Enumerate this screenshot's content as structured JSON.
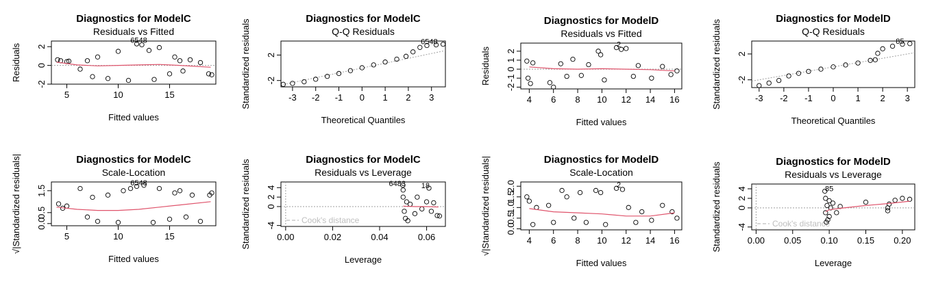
{
  "page_title": "",
  "colors": {
    "points": "#000000",
    "smooth_line": "#DF536B",
    "reference_line": "#9E9E9E",
    "cooks_legend": "#BEBEBE"
  },
  "chart_data": [
    {
      "type": "scatter",
      "title": "Diagnostics for ModelC",
      "subtitle": "Residuals vs Fitted",
      "xlabel": "Fitted values",
      "ylabel": "Residuals",
      "xlim": [
        3.5,
        19.5
      ],
      "ylim": [
        -2,
        2.6
      ],
      "x_ticks": [
        "5",
        "10",
        "15"
      ],
      "x_tick_values": [
        5,
        10,
        15
      ],
      "y_ticks": [
        "-2",
        "0",
        "2"
      ],
      "y_tick_values": [
        -2,
        0,
        2
      ],
      "reference": {
        "kind": "h",
        "value": 0
      },
      "smooth": [
        [
          4,
          0.35
        ],
        [
          6,
          0.05
        ],
        [
          8,
          -0.05
        ],
        [
          10,
          0.0
        ],
        [
          12,
          0.05
        ],
        [
          14,
          0.1
        ],
        [
          16,
          0.0
        ],
        [
          19,
          -0.2
        ]
      ],
      "point_labels": [
        {
          "text": "6548",
          "x": 12.0,
          "y": 2.4
        }
      ],
      "points": [
        [
          4.1,
          0.6
        ],
        [
          4.4,
          0.5
        ],
        [
          5.0,
          0.4
        ],
        [
          5.2,
          0.45
        ],
        [
          6.3,
          -0.4
        ],
        [
          7.0,
          0.5
        ],
        [
          7.5,
          -1.2
        ],
        [
          8.0,
          0.9
        ],
        [
          9.0,
          -1.4
        ],
        [
          10.0,
          1.5
        ],
        [
          11.0,
          -1.6
        ],
        [
          11.8,
          2.3
        ],
        [
          12.3,
          2.2
        ],
        [
          13.0,
          1.6
        ],
        [
          13.5,
          -1.5
        ],
        [
          14.0,
          1.9
        ],
        [
          15.0,
          -0.9
        ],
        [
          15.5,
          0.9
        ],
        [
          16.0,
          0.5
        ],
        [
          16.3,
          -0.6
        ],
        [
          17.0,
          0.6
        ],
        [
          18.0,
          0.3
        ],
        [
          18.8,
          -0.9
        ],
        [
          19.1,
          -1.0
        ]
      ]
    },
    {
      "type": "scatter",
      "title": "Diagnostics for ModelC",
      "subtitle": "Q-Q Residuals",
      "xlabel": "Theoretical Quantiles",
      "ylabel": "Standardized residuals",
      "xlim": [
        -3.5,
        3.6
      ],
      "ylim": [
        -3.0,
        4.2
      ],
      "x_ticks": [
        "-3",
        "-2",
        "-1",
        "0",
        "1",
        "2",
        "3"
      ],
      "x_tick_values": [
        -3,
        -2,
        -1,
        0,
        1,
        2,
        3
      ],
      "y_ticks": [
        "-2",
        "2"
      ],
      "y_tick_values": [
        -2,
        2
      ],
      "reference": {
        "kind": "line",
        "points": [
          [
            -3.5,
            -2.7
          ],
          [
            3.6,
            2.7
          ]
        ]
      },
      "point_labels": [
        {
          "text": "6548",
          "x": 2.9,
          "y": 3.7
        }
      ],
      "points": [
        [
          -3.4,
          -2.6
        ],
        [
          -3.0,
          -2.45
        ],
        [
          -2.5,
          -2.2
        ],
        [
          -2.0,
          -1.8
        ],
        [
          -1.5,
          -1.35
        ],
        [
          -1.0,
          -0.9
        ],
        [
          -0.5,
          -0.45
        ],
        [
          0.0,
          0.0
        ],
        [
          0.5,
          0.45
        ],
        [
          1.0,
          0.9
        ],
        [
          1.5,
          1.35
        ],
        [
          1.9,
          1.8
        ],
        [
          2.2,
          2.5
        ],
        [
          2.5,
          3.2
        ],
        [
          2.8,
          3.5
        ],
        [
          3.2,
          3.6
        ],
        [
          3.5,
          3.7
        ]
      ]
    },
    {
      "type": "scatter",
      "title": "Diagnostics for ModelD",
      "subtitle": "Residuals vs Fitted",
      "xlabel": "Fitted values",
      "ylabel": "Residuals",
      "xlim": [
        3.3,
        16.6
      ],
      "ylim": [
        -2.2,
        2.9
      ],
      "x_ticks": [
        "4",
        "6",
        "8",
        "10",
        "12",
        "14",
        "16"
      ],
      "x_tick_values": [
        4,
        6,
        8,
        10,
        12,
        14,
        16
      ],
      "y_ticks": [
        "-2",
        "-1",
        "0",
        "1",
        "2"
      ],
      "y_tick_values": [
        -2,
        -1,
        0,
        1,
        2
      ],
      "reference": {
        "kind": "h",
        "value": 0
      },
      "smooth": [
        [
          4,
          0.25
        ],
        [
          6,
          0.05
        ],
        [
          8,
          0.0
        ],
        [
          10,
          0.05
        ],
        [
          12,
          0.0
        ],
        [
          14,
          -0.05
        ],
        [
          16,
          -0.2
        ]
      ],
      "point_labels": [
        {
          "text": "2",
          "x": 11.4,
          "y": 2.5
        }
      ],
      "points": [
        [
          3.8,
          0.9
        ],
        [
          3.9,
          -1.0
        ],
        [
          4.1,
          -1.6
        ],
        [
          4.3,
          0.7
        ],
        [
          5.7,
          -1.5
        ],
        [
          6.0,
          -2.0
        ],
        [
          6.6,
          0.6
        ],
        [
          7.1,
          -0.8
        ],
        [
          7.6,
          1.1
        ],
        [
          8.3,
          -0.7
        ],
        [
          8.9,
          0.5
        ],
        [
          9.7,
          2.0
        ],
        [
          9.9,
          1.6
        ],
        [
          10.2,
          -1.2
        ],
        [
          11.2,
          2.4
        ],
        [
          11.6,
          2.2
        ],
        [
          12.0,
          2.3
        ],
        [
          12.6,
          -0.8
        ],
        [
          13.0,
          0.4
        ],
        [
          14.1,
          -1.0
        ],
        [
          15.0,
          0.3
        ],
        [
          15.7,
          -0.6
        ],
        [
          16.2,
          -0.2
        ]
      ]
    },
    {
      "type": "scatter",
      "title": "Diagnostics for ModelD",
      "subtitle": "Q-Q Residuals",
      "xlabel": "Theoretical Quantiles",
      "ylabel": "Standardized residuals",
      "xlim": [
        -3.3,
        3.3
      ],
      "ylim": [
        -3.2,
        4.0
      ],
      "x_ticks": [
        "-3",
        "-2",
        "-1",
        "0",
        "1",
        "2",
        "3"
      ],
      "x_tick_values": [
        -3,
        -2,
        -1,
        0,
        1,
        2,
        3
      ],
      "y_ticks": [
        "-2",
        "2"
      ],
      "y_tick_values": [
        -2,
        2
      ],
      "reference": {
        "kind": "line",
        "points": [
          [
            -3.3,
            -2.2
          ],
          [
            3.3,
            2.2
          ]
        ]
      },
      "point_labels": [
        {
          "text": "85",
          "x": 2.7,
          "y": 3.6
        }
      ],
      "points": [
        [
          -3.0,
          -2.9
        ],
        [
          -2.6,
          -2.5
        ],
        [
          -2.2,
          -2.1
        ],
        [
          -1.8,
          -1.4
        ],
        [
          -1.4,
          -1.0
        ],
        [
          -1.0,
          -0.7
        ],
        [
          -0.5,
          -0.35
        ],
        [
          0.0,
          0.0
        ],
        [
          0.5,
          0.3
        ],
        [
          1.0,
          0.6
        ],
        [
          1.5,
          1.0
        ],
        [
          1.7,
          1.1
        ],
        [
          1.8,
          2.1
        ],
        [
          2.0,
          2.8
        ],
        [
          2.4,
          3.2
        ],
        [
          2.8,
          3.5
        ],
        [
          3.1,
          3.6
        ]
      ]
    },
    {
      "type": "scatter",
      "title": "Diagnostics for ModelC",
      "subtitle": "Scale-Location",
      "xlabel": "Fitted values",
      "ylabel": "√|Standardized residuals|",
      "xlim": [
        3.5,
        19.5
      ],
      "ylim": [
        -0.1,
        1.9
      ],
      "x_ticks": [
        "5",
        "10",
        "15"
      ],
      "x_tick_values": [
        5,
        10,
        15
      ],
      "y_ticks": [
        "0.0",
        "0.5",
        "1.5"
      ],
      "y_tick_values": [
        0.0,
        0.5,
        1.5
      ],
      "smooth": [
        [
          4,
          0.75
        ],
        [
          6,
          0.65
        ],
        [
          8,
          0.6
        ],
        [
          10,
          0.6
        ],
        [
          12,
          0.65
        ],
        [
          14,
          0.75
        ],
        [
          16,
          0.85
        ],
        [
          19,
          1.0
        ]
      ],
      "point_labels": [
        {
          "text": "6548",
          "x": 12.0,
          "y": 1.75
        }
      ],
      "points": [
        [
          4.2,
          0.9
        ],
        [
          4.6,
          0.7
        ],
        [
          5.0,
          0.8
        ],
        [
          6.3,
          1.6
        ],
        [
          7.0,
          0.3
        ],
        [
          7.5,
          1.2
        ],
        [
          8.0,
          0.1
        ],
        [
          9.0,
          1.3
        ],
        [
          10.0,
          0.05
        ],
        [
          10.5,
          1.5
        ],
        [
          11.2,
          1.6
        ],
        [
          11.8,
          1.7
        ],
        [
          12.5,
          1.75
        ],
        [
          13.4,
          0.05
        ],
        [
          14.0,
          1.6
        ],
        [
          15.0,
          0.2
        ],
        [
          15.5,
          1.4
        ],
        [
          16.0,
          1.5
        ],
        [
          16.6,
          0.3
        ],
        [
          17.2,
          1.3
        ],
        [
          18.0,
          0.1
        ],
        [
          18.9,
          1.3
        ],
        [
          19.1,
          1.4
        ]
      ]
    },
    {
      "type": "scatter",
      "title": "Diagnostics for ModelC",
      "subtitle": "Residuals vs Leverage",
      "xlabel": "Leverage",
      "ylabel": "Standardized residuals",
      "xlim": [
        -0.002,
        0.068
      ],
      "ylim": [
        -4.2,
        5.2
      ],
      "x_ticks": [
        "0.00",
        "0.02",
        "0.04",
        "0.06"
      ],
      "x_tick_values": [
        0.0,
        0.02,
        0.04,
        0.06
      ],
      "y_ticks": [
        "-4",
        "0",
        "2",
        "4"
      ],
      "y_tick_values": [
        -4,
        0,
        2,
        4
      ],
      "reference": {
        "kind": "h",
        "value": 0
      },
      "smooth": [
        [
          0.05,
          0.1
        ],
        [
          0.055,
          0.0
        ],
        [
          0.06,
          0.0
        ],
        [
          0.065,
          -0.1
        ]
      ],
      "point_labels": [
        {
          "text": "6483",
          "x": 0.0475,
          "y": 4.3
        },
        {
          "text": "18",
          "x": 0.0595,
          "y": 3.9
        }
      ],
      "legend_text": "Cook's distance",
      "points": [
        [
          0.0499,
          4.5
        ],
        [
          0.05,
          3.5
        ],
        [
          0.05,
          2.0
        ],
        [
          0.0505,
          -1.0
        ],
        [
          0.051,
          -2.5
        ],
        [
          0.0515,
          1.0
        ],
        [
          0.052,
          -3.0
        ],
        [
          0.053,
          0.5
        ],
        [
          0.055,
          -1.5
        ],
        [
          0.056,
          2.0
        ],
        [
          0.058,
          -0.5
        ],
        [
          0.06,
          1.0
        ],
        [
          0.061,
          3.9
        ],
        [
          0.062,
          -1.0
        ],
        [
          0.063,
          0.8
        ],
        [
          0.0645,
          -1.9
        ],
        [
          0.0655,
          -2.0
        ]
      ]
    },
    {
      "type": "scatter",
      "title": "Diagnostics for ModelD",
      "subtitle": "Scale-Location",
      "xlabel": "Fitted values",
      "ylabel": "√|Standardized residuals|",
      "xlim": [
        3.3,
        16.6
      ],
      "ylim": [
        -0.05,
        2.2
      ],
      "x_ticks": [
        "4",
        "6",
        "8",
        "10",
        "12",
        "14",
        "16"
      ],
      "x_tick_values": [
        4,
        6,
        8,
        10,
        12,
        14,
        16
      ],
      "y_ticks": [
        "0.0",
        "0.5",
        "1.0",
        "1.5",
        "2.0"
      ],
      "y_tick_values": [
        0.0,
        0.5,
        1.0,
        1.5,
        2.0
      ],
      "smooth": [
        [
          4,
          0.95
        ],
        [
          6,
          0.8
        ],
        [
          8,
          0.75
        ],
        [
          10,
          0.7
        ],
        [
          12,
          0.6
        ],
        [
          14,
          0.6
        ],
        [
          16,
          0.75
        ]
      ],
      "point_labels": [
        {
          "text": "2",
          "x": 11.4,
          "y": 1.95
        }
      ],
      "points": [
        [
          3.8,
          1.5
        ],
        [
          4.0,
          1.3
        ],
        [
          4.3,
          0.2
        ],
        [
          4.6,
          1.0
        ],
        [
          5.6,
          1.1
        ],
        [
          6.0,
          0.3
        ],
        [
          6.7,
          1.8
        ],
        [
          7.1,
          1.5
        ],
        [
          7.7,
          0.5
        ],
        [
          8.2,
          1.7
        ],
        [
          8.7,
          0.3
        ],
        [
          9.5,
          1.8
        ],
        [
          9.9,
          1.7
        ],
        [
          10.3,
          0.2
        ],
        [
          11.2,
          1.9
        ],
        [
          11.7,
          1.85
        ],
        [
          12.2,
          1.0
        ],
        [
          12.8,
          0.3
        ],
        [
          13.3,
          0.8
        ],
        [
          14.1,
          0.4
        ],
        [
          15.0,
          1.1
        ],
        [
          15.8,
          0.8
        ],
        [
          16.2,
          0.5
        ]
      ]
    },
    {
      "type": "scatter",
      "title": "Diagnostics for ModelD",
      "subtitle": "Residuals vs Leverage",
      "xlabel": "Leverage",
      "ylabel": "Standardized residuals",
      "xlim": [
        -0.006,
        0.217
      ],
      "ylim": [
        -4.6,
        5.0
      ],
      "x_ticks": [
        "0.00",
        "0.05",
        "0.10",
        "0.15",
        "0.20"
      ],
      "x_tick_values": [
        0.0,
        0.05,
        0.1,
        0.15,
        0.2
      ],
      "y_ticks": [
        "-4",
        "0",
        "2",
        "4"
      ],
      "y_tick_values": [
        -4,
        0,
        2,
        4
      ],
      "reference": {
        "kind": "h",
        "value": 0
      },
      "smooth": [
        [
          0.095,
          -0.8
        ],
        [
          0.1,
          -0.4
        ],
        [
          0.12,
          0.0
        ],
        [
          0.15,
          0.5
        ],
        [
          0.18,
          0.9
        ],
        [
          0.21,
          1.4
        ]
      ],
      "point_labels": [
        {
          "text": "85",
          "x": 0.1,
          "y": 3.5
        }
      ],
      "legend_text": "Cook's distance",
      "points": [
        [
          0.094,
          3.5
        ],
        [
          0.095,
          2.0
        ],
        [
          0.095,
          -1.0
        ],
        [
          0.096,
          -3.0
        ],
        [
          0.097,
          0.5
        ],
        [
          0.098,
          -2.5
        ],
        [
          0.1,
          1.5
        ],
        [
          0.1,
          -1.8
        ],
        [
          0.102,
          0.0
        ],
        [
          0.105,
          1.0
        ],
        [
          0.11,
          -1.0
        ],
        [
          0.115,
          0.3
        ],
        [
          0.15,
          1.2
        ],
        [
          0.18,
          0.0
        ],
        [
          0.18,
          -0.6
        ],
        [
          0.182,
          0.8
        ],
        [
          0.19,
          1.6
        ],
        [
          0.2,
          2.0
        ],
        [
          0.21,
          1.8
        ]
      ]
    }
  ]
}
